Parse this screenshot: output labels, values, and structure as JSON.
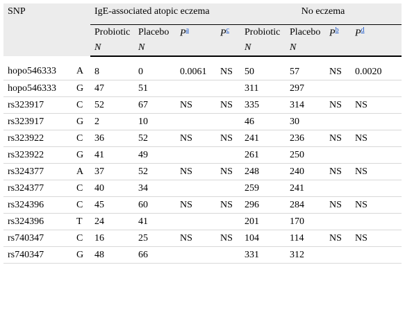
{
  "header": {
    "snp": "SNP",
    "group_ige": "IgE-associated atopic eczema",
    "group_no": "No eczema",
    "cols": {
      "probiotic": "Probiotic",
      "placebo": "Placebo",
      "p_a": "P",
      "p_a_sup": "a",
      "p_c": "P",
      "p_c_sup": "c",
      "probiotic2": "Probiotic",
      "placebo2": "Placebo",
      "p_b": "P",
      "p_b_sup": "b",
      "p_d": "P",
      "p_d_sup": "d"
    },
    "n_label": "N"
  },
  "rows": [
    {
      "snp": "hopo546333",
      "allele": "A",
      "ige_pro": "8",
      "ige_pla": "0",
      "pa": "0.0061",
      "pc": "NS",
      "no_pro": "50",
      "no_pla": "57",
      "pb": "NS",
      "pd": "0.0020"
    },
    {
      "snp": "hopo546333",
      "allele": "G",
      "ige_pro": "47",
      "ige_pla": "51",
      "pa": "",
      "pc": "",
      "no_pro": "311",
      "no_pla": "297",
      "pb": "",
      "pd": ""
    },
    {
      "snp": "rs323917",
      "allele": "C",
      "ige_pro": "52",
      "ige_pla": "67",
      "pa": "NS",
      "pc": "NS",
      "no_pro": "335",
      "no_pla": "314",
      "pb": "NS",
      "pd": "NS"
    },
    {
      "snp": "rs323917",
      "allele": "G",
      "ige_pro": "2",
      "ige_pla": "10",
      "pa": "",
      "pc": "",
      "no_pro": "46",
      "no_pla": "30",
      "pb": "",
      "pd": ""
    },
    {
      "snp": "rs323922",
      "allele": "C",
      "ige_pro": "36",
      "ige_pla": "52",
      "pa": "NS",
      "pc": "NS",
      "no_pro": "241",
      "no_pla": "236",
      "pb": "NS",
      "pd": "NS"
    },
    {
      "snp": "rs323922",
      "allele": "G",
      "ige_pro": "41",
      "ige_pla": "49",
      "pa": "",
      "pc": "",
      "no_pro": "261",
      "no_pla": "250",
      "pb": "",
      "pd": ""
    },
    {
      "snp": "rs324377",
      "allele": "A",
      "ige_pro": "37",
      "ige_pla": "52",
      "pa": "NS",
      "pc": "NS",
      "no_pro": "248",
      "no_pla": "240",
      "pb": "NS",
      "pd": "NS"
    },
    {
      "snp": "rs324377",
      "allele": "C",
      "ige_pro": "40",
      "ige_pla": "34",
      "pa": "",
      "pc": "",
      "no_pro": "259",
      "no_pla": "241",
      "pb": "",
      "pd": ""
    },
    {
      "snp": "rs324396",
      "allele": "C",
      "ige_pro": "45",
      "ige_pla": "60",
      "pa": "NS",
      "pc": "NS",
      "no_pro": "296",
      "no_pla": "284",
      "pb": "NS",
      "pd": "NS"
    },
    {
      "snp": "rs324396",
      "allele": "T",
      "ige_pro": "24",
      "ige_pla": "41",
      "pa": "",
      "pc": "",
      "no_pro": "201",
      "no_pla": "170",
      "pb": "",
      "pd": ""
    },
    {
      "snp": "rs740347",
      "allele": "C",
      "ige_pro": "16",
      "ige_pla": "25",
      "pa": "NS",
      "pc": "NS",
      "no_pro": "104",
      "no_pla": "114",
      "pb": "NS",
      "pd": "NS"
    },
    {
      "snp": "rs740347",
      "allele": "G",
      "ige_pro": "48",
      "ige_pla": "66",
      "pa": "",
      "pc": "",
      "no_pro": "331",
      "no_pla": "312",
      "pb": "",
      "pd": ""
    }
  ]
}
